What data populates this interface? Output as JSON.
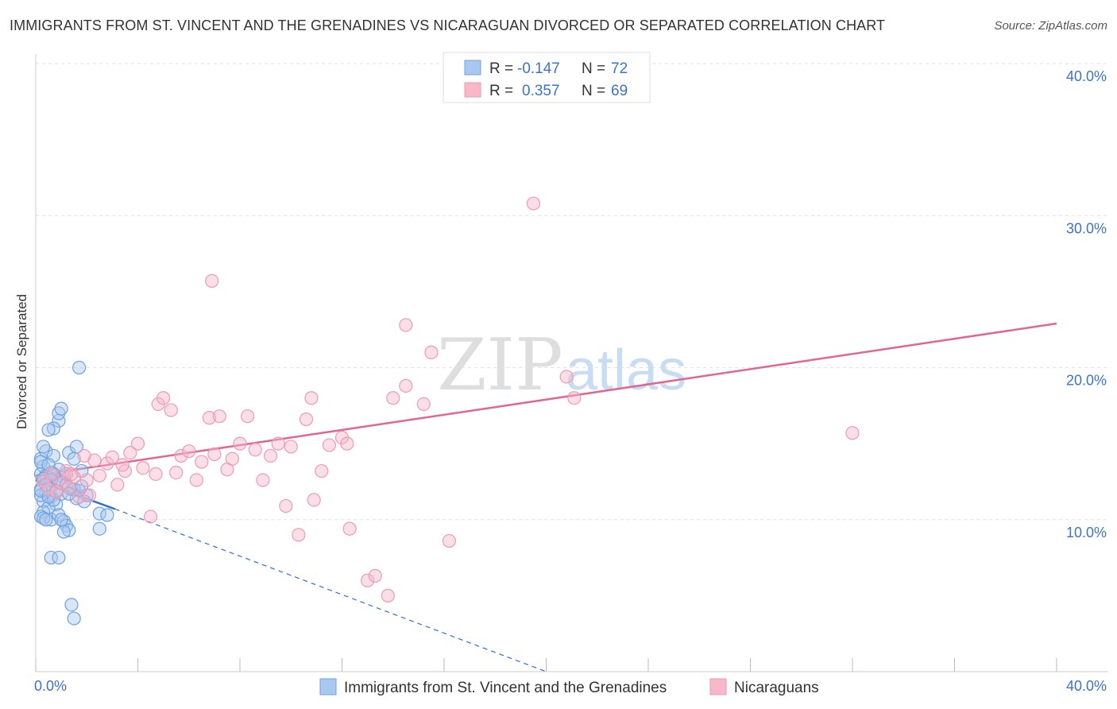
{
  "header": {
    "title": "IMMIGRANTS FROM ST. VINCENT AND THE GRENADINES VS NICARAGUAN DIVORCED OR SEPARATED CORRELATION CHART",
    "source": "Source: ZipAtlas.com"
  },
  "watermark": {
    "zip": "ZIP",
    "atlas": "atlas"
  },
  "legend": {
    "rows": [
      {
        "r_label": "R =",
        "r_value": "-0.147",
        "n_label": "N =",
        "n_value": "72",
        "color": "#a8c8f0"
      },
      {
        "r_label": "R =",
        "r_value": "0.357",
        "n_label": "N =",
        "n_value": "69",
        "color": "#f7b8c8"
      }
    ]
  },
  "chart_data": {
    "type": "scatter",
    "ylabel": "Divorced or Separated",
    "xlim": [
      0,
      40
    ],
    "ylim": [
      0,
      40
    ],
    "x_tick_labels": [
      "0.0%",
      "40.0%"
    ],
    "y_tick_labels": [
      "10.0%",
      "20.0%",
      "30.0%",
      "40.0%"
    ],
    "y_ticks": [
      10,
      20,
      30,
      40
    ],
    "series": [
      {
        "name": "Immigrants from St. Vincent and the Grenadines",
        "color": "#6fa0e0",
        "fill": "#a8c8f0",
        "trend": {
          "x0": 0.0,
          "y0": 12.6,
          "x1": 3.1,
          "y1": 10.7,
          "x_dash_end": 20.0,
          "y_dash_end": 0.0,
          "color": "#2e6fd0"
        },
        "points": [
          [
            0.2,
            14.0
          ],
          [
            0.3,
            13.5
          ],
          [
            0.2,
            13.0
          ],
          [
            0.4,
            12.8
          ],
          [
            0.3,
            12.5
          ],
          [
            0.5,
            12.2
          ],
          [
            0.2,
            12.0
          ],
          [
            0.4,
            11.8
          ],
          [
            0.6,
            11.5
          ],
          [
            0.3,
            11.2
          ],
          [
            0.8,
            11.0
          ],
          [
            0.5,
            10.8
          ],
          [
            0.3,
            10.5
          ],
          [
            0.2,
            10.2
          ],
          [
            0.6,
            10.0
          ],
          [
            0.9,
            10.3
          ],
          [
            1.1,
            9.9
          ],
          [
            1.2,
            9.6
          ],
          [
            0.4,
            14.5
          ],
          [
            0.7,
            14.2
          ],
          [
            1.3,
            14.4
          ],
          [
            1.5,
            14.0
          ],
          [
            0.9,
            13.3
          ],
          [
            0.6,
            13.1
          ],
          [
            1.8,
            13.2
          ],
          [
            1.4,
            12.0
          ],
          [
            1.7,
            11.9
          ],
          [
            1.0,
            11.7
          ],
          [
            2.0,
            11.6
          ],
          [
            1.6,
            11.4
          ],
          [
            0.8,
            12.4
          ],
          [
            0.5,
            12.1
          ],
          [
            0.2,
            11.6
          ],
          [
            0.7,
            11.3
          ],
          [
            1.1,
            12.8
          ],
          [
            1.9,
            11.2
          ],
          [
            0.4,
            12.9
          ],
          [
            0.9,
            12.6
          ],
          [
            1.2,
            12.3
          ],
          [
            1.0,
            10.0
          ],
          [
            1.3,
            9.3
          ],
          [
            1.1,
            9.2
          ],
          [
            2.5,
            10.4
          ],
          [
            2.8,
            10.3
          ],
          [
            2.5,
            9.4
          ],
          [
            0.6,
            7.5
          ],
          [
            0.9,
            7.5
          ],
          [
            1.4,
            4.4
          ],
          [
            1.5,
            3.5
          ],
          [
            1.7,
            20.0
          ],
          [
            0.9,
            16.5
          ],
          [
            0.9,
            17.0
          ],
          [
            1.0,
            17.3
          ],
          [
            0.7,
            16.0
          ],
          [
            0.5,
            15.9
          ],
          [
            1.6,
            14.8
          ],
          [
            0.3,
            14.8
          ],
          [
            0.2,
            13.8
          ],
          [
            0.5,
            13.6
          ],
          [
            0.7,
            13.0
          ],
          [
            0.3,
            12.7
          ],
          [
            0.6,
            12.6
          ],
          [
            0.4,
            12.3
          ],
          [
            0.2,
            11.9
          ],
          [
            0.8,
            11.9
          ],
          [
            1.5,
            12.0
          ],
          [
            1.3,
            11.7
          ],
          [
            0.5,
            11.5
          ],
          [
            0.3,
            10.1
          ],
          [
            0.4,
            10.0
          ],
          [
            1.2,
            13.0
          ],
          [
            1.8,
            12.2
          ]
        ]
      },
      {
        "name": "Nicaraguans",
        "color": "#ee9ab4",
        "fill": "#f7b8c8",
        "trend": {
          "x0": 0.0,
          "y0": 12.9,
          "x1": 40.0,
          "y1": 22.9,
          "color": "#e0678f"
        },
        "points": [
          [
            0.3,
            12.5
          ],
          [
            0.5,
            12.0
          ],
          [
            0.8,
            11.8
          ],
          [
            1.0,
            12.4
          ],
          [
            1.2,
            13.2
          ],
          [
            1.5,
            12.8
          ],
          [
            1.7,
            11.5
          ],
          [
            2.0,
            12.6
          ],
          [
            2.3,
            13.9
          ],
          [
            2.5,
            12.9
          ],
          [
            2.8,
            13.7
          ],
          [
            3.0,
            14.1
          ],
          [
            3.2,
            12.3
          ],
          [
            3.5,
            13.2
          ],
          [
            3.7,
            14.4
          ],
          [
            4.0,
            15.0
          ],
          [
            4.2,
            13.4
          ],
          [
            4.5,
            10.2
          ],
          [
            4.8,
            17.6
          ],
          [
            5.0,
            18.0
          ],
          [
            5.3,
            17.2
          ],
          [
            5.5,
            13.1
          ],
          [
            5.7,
            14.2
          ],
          [
            6.0,
            14.5
          ],
          [
            6.3,
            12.6
          ],
          [
            6.5,
            13.8
          ],
          [
            6.8,
            16.7
          ],
          [
            7.0,
            14.3
          ],
          [
            7.2,
            16.8
          ],
          [
            7.5,
            13.3
          ],
          [
            7.7,
            14.0
          ],
          [
            8.0,
            15.0
          ],
          [
            8.3,
            16.8
          ],
          [
            8.6,
            14.6
          ],
          [
            8.9,
            12.6
          ],
          [
            9.2,
            14.2
          ],
          [
            9.5,
            15.0
          ],
          [
            9.8,
            10.9
          ],
          [
            10.0,
            14.8
          ],
          [
            10.3,
            9.0
          ],
          [
            10.6,
            16.6
          ],
          [
            10.9,
            11.3
          ],
          [
            11.2,
            13.2
          ],
          [
            11.5,
            14.9
          ],
          [
            12.0,
            15.4
          ],
          [
            12.2,
            15.0
          ],
          [
            6.9,
            25.7
          ],
          [
            10.8,
            18.0
          ],
          [
            12.3,
            9.4
          ],
          [
            13.0,
            6.0
          ],
          [
            13.3,
            6.3
          ],
          [
            13.8,
            5.0
          ],
          [
            14.0,
            18.0
          ],
          [
            14.5,
            18.8
          ],
          [
            14.5,
            22.8
          ],
          [
            15.2,
            17.6
          ],
          [
            15.5,
            21.0
          ],
          [
            16.2,
            8.6
          ],
          [
            19.5,
            30.8
          ],
          [
            20.8,
            19.4
          ],
          [
            21.1,
            18.0
          ],
          [
            32.0,
            15.7
          ],
          [
            1.3,
            12.1
          ],
          [
            2.1,
            11.6
          ],
          [
            0.6,
            13.0
          ],
          [
            1.9,
            14.2
          ],
          [
            3.4,
            13.6
          ],
          [
            4.7,
            13.0
          ],
          [
            1.4,
            13.0
          ]
        ]
      }
    ]
  }
}
